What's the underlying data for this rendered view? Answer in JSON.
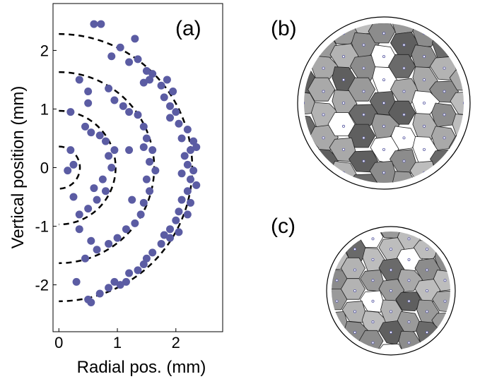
{
  "chart_data": {
    "type": "scatter",
    "annotation": "(a)",
    "x_label": "Radial pos. (mm)",
    "y_label": "Vertical position (mm)",
    "color": "#5b5ca3",
    "x": [
      0.6,
      0.72,
      1.05,
      1.3,
      0.9,
      1.2,
      1.35,
      1.5,
      1.6,
      1.55,
      1.75,
      1.8,
      1.9,
      2.0,
      1.45,
      1.85,
      1.95,
      1.9,
      2.05,
      2.2,
      2.1,
      2.3,
      2.25,
      2.15,
      2.35,
      2.2,
      2.3,
      2.1,
      2.25,
      2.35,
      2.2,
      2.1,
      2.25,
      2.05,
      2.2,
      2.0,
      1.9,
      2.05,
      1.8,
      1.75,
      1.9,
      1.6,
      1.5,
      1.45,
      1.35,
      1.2,
      1.15,
      1.05,
      0.95,
      0.85,
      0.7,
      0.5,
      0.55,
      0.3,
      0.35,
      0.5,
      0.5,
      0.85,
      0.95,
      1.1,
      1.2,
      1.35,
      1.45,
      1.5,
      1.45,
      1.6,
      1.55,
      1.65,
      1.5,
      1.55,
      1.45,
      1.4,
      1.3,
      1.15,
      1.0,
      0.85,
      0.65,
      0.45,
      0.35,
      0.55,
      1.25,
      1.2,
      0.2,
      0.45,
      0.55,
      0.7,
      0.8,
      0.85,
      0.9,
      0.75,
      0.8,
      0.65,
      0.5,
      0.35,
      0.6,
      0.25,
      0.95,
      0.25,
      0.2,
      0.15
    ],
    "values": [
      2.45,
      2.45,
      2.05,
      2.2,
      1.9,
      1.8,
      1.85,
      1.65,
      1.6,
      1.5,
      1.4,
      1.2,
      1.05,
      0.95,
      1.45,
      1.5,
      1.3,
      0.85,
      0.75,
      0.65,
      0.5,
      0.45,
      0.3,
      0.2,
      0.35,
      0.05,
      -0.05,
      -0.1,
      -0.2,
      -0.3,
      -0.4,
      -0.55,
      -0.6,
      -0.75,
      -0.8,
      -0.9,
      -1.05,
      -1.1,
      -1.15,
      -1.3,
      -1.2,
      -1.45,
      -1.55,
      -1.65,
      -1.75,
      -1.8,
      -1.95,
      -2.0,
      -1.95,
      -2.05,
      -2.15,
      -2.25,
      -2.3,
      -1.95,
      1.5,
      1.3,
      1.1,
      1.35,
      1.15,
      1.05,
      0.95,
      0.9,
      0.7,
      0.5,
      0.35,
      0.3,
      0.1,
      -0.05,
      -0.2,
      -0.4,
      -0.6,
      -0.8,
      -0.95,
      -1.05,
      -1.2,
      -1.3,
      -1.4,
      -1.55,
      -1.05,
      -1.25,
      -0.55,
      0.3,
      0.95,
      0.7,
      0.6,
      0.55,
      0.45,
      0.2,
      0.0,
      -0.2,
      -0.4,
      -0.55,
      -0.7,
      -0.8,
      -0.35,
      -0.5,
      0.3,
      0.05,
      0.3,
      -0.05
    ],
    "shell_radii": [
      0.36,
      0.97,
      1.63,
      2.28
    ],
    "xlim": [
      -0.1,
      2.8
    ],
    "ylim": [
      -2.8,
      2.8
    ],
    "xticks": [
      0,
      1,
      2
    ],
    "yticks": [
      -2,
      -1,
      0,
      1,
      2
    ]
  },
  "panels": [
    {
      "label": "(b)"
    },
    {
      "label": "(c)"
    }
  ]
}
